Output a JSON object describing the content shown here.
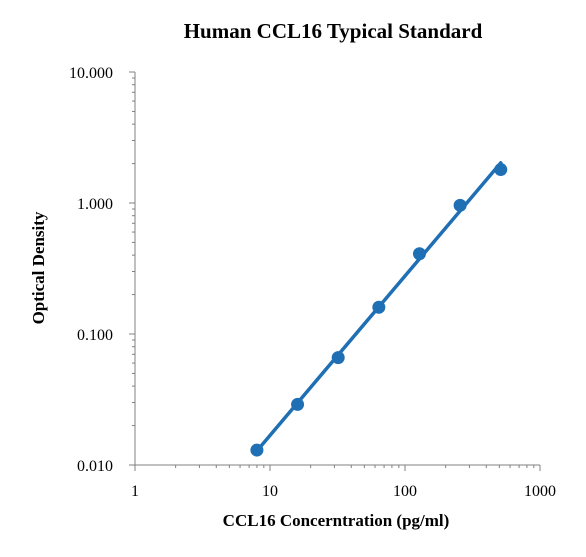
{
  "chart_data": {
    "type": "scatter",
    "title": "Human CCL16 Typical Standard",
    "xlabel": "CCL16 Concerntration (pg/ml)",
    "ylabel": "Optical Density",
    "x_scale": "log",
    "y_scale": "log",
    "xlim": [
      1,
      1000
    ],
    "ylim": [
      0.01,
      10
    ],
    "x_tick_labels": [
      "1",
      "10",
      "100",
      "1000"
    ],
    "y_tick_labels": [
      "0.010",
      "0.100",
      "1.000",
      "10.000"
    ],
    "grid": false,
    "legend": "none",
    "series": [
      {
        "x": [
          8,
          16,
          32,
          64,
          128,
          256,
          512
        ],
        "y": [
          0.013,
          0.029,
          0.066,
          0.16,
          0.41,
          0.96,
          1.8
        ],
        "trendline": true
      }
    ],
    "color": "#1f6fb4"
  }
}
